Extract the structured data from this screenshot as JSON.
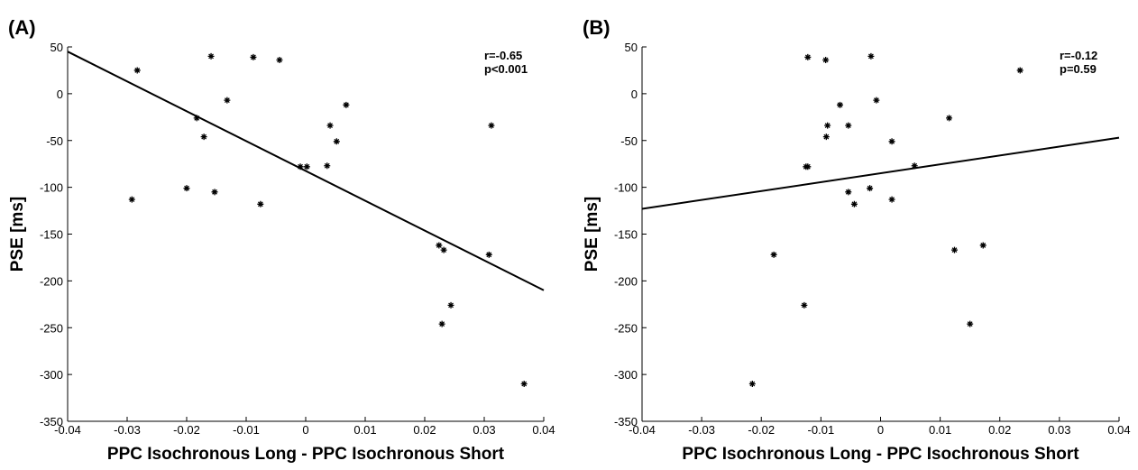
{
  "chart_data": [
    {
      "type": "scatter",
      "label": "(A)",
      "xlabel": "PPC Isochronous Long - PPC Isochronous Short",
      "ylabel": "PSE [ms]",
      "annotations": [
        "r=-0.65",
        "p<0.001"
      ],
      "color": "#000000",
      "x": [
        -0.0283,
        -0.0159,
        -0.0088,
        -0.0044,
        -0.0132,
        -0.0183,
        -0.0171,
        0.0068,
        0.0041,
        0.0052,
        -0.0009,
        0.0002,
        0.0036,
        -0.0292,
        -0.02,
        -0.0153,
        -0.0076,
        0.0312,
        0.0224,
        0.0232,
        0.0244,
        0.0229,
        0.0308,
        0.0367
      ],
      "y": [
        25,
        40,
        39,
        36,
        -7,
        -26,
        -46,
        -12,
        -34,
        -51,
        -78,
        -78,
        -77,
        -113,
        -101,
        -105,
        -118,
        -34,
        -162,
        -167,
        -226,
        -246,
        -172,
        -310
      ],
      "fit_line": {
        "x": [
          -0.04,
          0.04
        ],
        "y": [
          45,
          -210
        ]
      },
      "xlim": [
        -0.04,
        0.04
      ],
      "ylim": [
        -350,
        50
      ],
      "xticks": [
        -0.04,
        -0.03,
        -0.02,
        -0.01,
        0,
        0.01,
        0.02,
        0.03,
        0.04
      ],
      "yticks": [
        -350,
        -300,
        -250,
        -200,
        -150,
        -100,
        -50,
        0,
        50
      ]
    },
    {
      "type": "scatter",
      "label": "(B)",
      "xlabel": "PPC Isochronous Long - PPC Isochronous Short",
      "ylabel": "PSE [ms]",
      "annotations": [
        "r=-0.12",
        "p=0.59"
      ],
      "color": "#000000",
      "x": [
        -0.0122,
        -0.0092,
        -0.0016,
        0.0234,
        -0.0007,
        -0.0068,
        -0.0089,
        -0.0054,
        -0.0091,
        0.0115,
        0.0019,
        -0.0122,
        -0.0125,
        0.0057,
        -0.0054,
        -0.0018,
        -0.0044,
        0.0019,
        -0.0179,
        0.0124,
        0.0172,
        -0.0128,
        0.015,
        -0.0215
      ],
      "y": [
        39,
        36,
        40,
        25,
        -7,
        -12,
        -34,
        -34,
        -46,
        -26,
        -51,
        -78,
        -78,
        -77,
        -105,
        -101,
        -118,
        -113,
        -172,
        -167,
        -162,
        -226,
        -246,
        -310
      ],
      "fit_line": {
        "x": [
          -0.04,
          0.04
        ],
        "y": [
          -123,
          -47
        ]
      },
      "xlim": [
        -0.04,
        0.04
      ],
      "ylim": [
        -350,
        50
      ],
      "xticks": [
        -0.04,
        -0.03,
        -0.02,
        -0.01,
        0,
        0.01,
        0.02,
        0.03,
        0.04
      ],
      "yticks": [
        -350,
        -300,
        -250,
        -200,
        -150,
        -100,
        -50,
        0,
        50
      ]
    }
  ]
}
